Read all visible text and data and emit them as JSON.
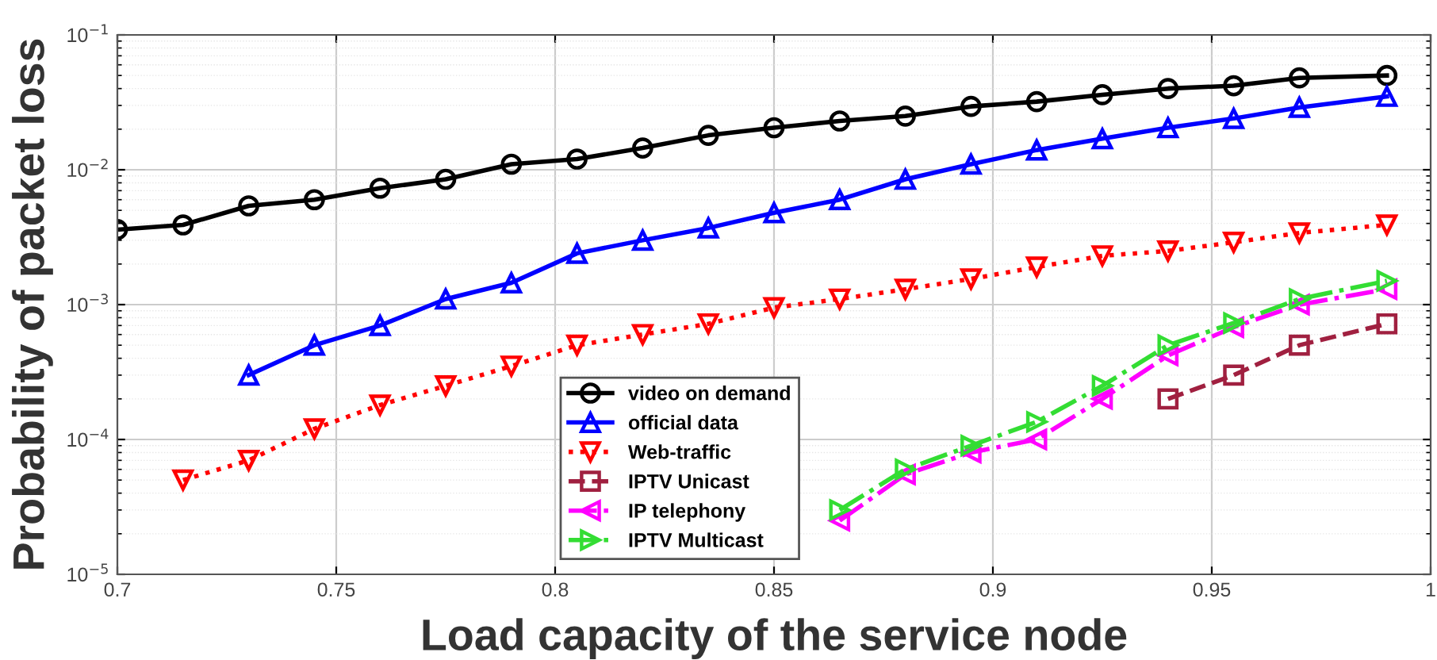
{
  "chart_data": {
    "type": "line",
    "xlabel": "Load capacity of the service node",
    "ylabel": "Probability of packet loss",
    "log": "y",
    "grid": true,
    "legend": "bottom",
    "xlim": [
      0.7,
      1
    ],
    "xticks": [
      0.7,
      0.75,
      0.8,
      0.85,
      0.9,
      0.95,
      1
    ],
    "ylim": [
      1e-05,
      0.1
    ],
    "yticks": [
      {
        "value": 1e-05,
        "label": "10$^{−5}$"
      },
      {
        "value": 0.0001,
        "label": "10$^{−4}$"
      },
      {
        "value": 0.001,
        "label": "10$^{−3}$"
      },
      {
        "value": 0.01,
        "label": "10$^{−2}$"
      },
      {
        "value": 0.1,
        "label": "10$^{−1}$"
      }
    ],
    "series": [
      {
        "name": "video on demand",
        "color": "#000000",
        "marker": "circle",
        "line_style": "solid",
        "x": [
          0.7,
          0.715,
          0.73,
          0.745,
          0.76,
          0.775,
          0.79,
          0.805,
          0.82,
          0.835,
          0.85,
          0.865,
          0.88,
          0.895,
          0.91,
          0.925,
          0.94,
          0.955,
          0.97,
          0.99
        ],
        "values": [
          0.0036,
          0.0039,
          0.0054,
          0.006,
          0.0073,
          0.0085,
          0.011,
          0.012,
          0.0145,
          0.018,
          0.0205,
          0.023,
          0.025,
          0.0295,
          0.032,
          0.036,
          0.04,
          0.042,
          0.048,
          0.05
        ]
      },
      {
        "name": "official data",
        "color": "#0000ff",
        "marker": "triangle",
        "line_style": "solid",
        "x": [
          0.73,
          0.745,
          0.76,
          0.775,
          0.79,
          0.805,
          0.82,
          0.835,
          0.85,
          0.865,
          0.88,
          0.895,
          0.91,
          0.925,
          0.94,
          0.955,
          0.97,
          0.99
        ],
        "values": [
          0.0003,
          0.0005,
          0.0007,
          0.0011,
          0.00145,
          0.0024,
          0.003,
          0.0037,
          0.0048,
          0.006,
          0.0085,
          0.011,
          0.014,
          0.017,
          0.0205,
          0.024,
          0.029,
          0.035
        ]
      },
      {
        "name": "Web-traffic",
        "color": "#ff0000",
        "marker": "triangle_down",
        "line_style": "dotted",
        "x": [
          0.715,
          0.73,
          0.745,
          0.76,
          0.775,
          0.79,
          0.805,
          0.82,
          0.835,
          0.85,
          0.865,
          0.88,
          0.895,
          0.91,
          0.925,
          0.94,
          0.955,
          0.97,
          0.99
        ],
        "values": [
          5e-05,
          7e-05,
          0.00012,
          0.00018,
          0.00025,
          0.00035,
          0.0005,
          0.0006,
          0.00072,
          0.00095,
          0.0011,
          0.0013,
          0.00155,
          0.0019,
          0.0023,
          0.0025,
          0.0029,
          0.0034,
          0.0039
        ]
      },
      {
        "name": "IPTV Unicast",
        "color": "#a02040",
        "marker": "square",
        "line_style": "dashed",
        "x": [
          0.94,
          0.955,
          0.97,
          0.99
        ],
        "values": [
          0.0002,
          0.0003,
          0.0005,
          0.00072
        ]
      },
      {
        "name": "IP telephony",
        "color": "#ff00ff",
        "marker": "triangle_left",
        "line_style": "dashdot",
        "x": [
          0.865,
          0.88,
          0.895,
          0.91,
          0.925,
          0.94,
          0.955,
          0.97,
          0.99
        ],
        "values": [
          2.5e-05,
          5.5e-05,
          8e-05,
          0.0001,
          0.0002,
          0.00042,
          0.00068,
          0.001,
          0.0013
        ]
      },
      {
        "name": "IPTV Multicast",
        "color": "#33dd33",
        "marker": "triangle_right",
        "line_style": "dashdot",
        "x": [
          0.865,
          0.88,
          0.895,
          0.91,
          0.925,
          0.94,
          0.955,
          0.97,
          0.99
        ],
        "values": [
          3e-05,
          6e-05,
          9e-05,
          0.000135,
          0.00025,
          0.0005,
          0.00073,
          0.0011,
          0.0015
        ]
      }
    ]
  }
}
